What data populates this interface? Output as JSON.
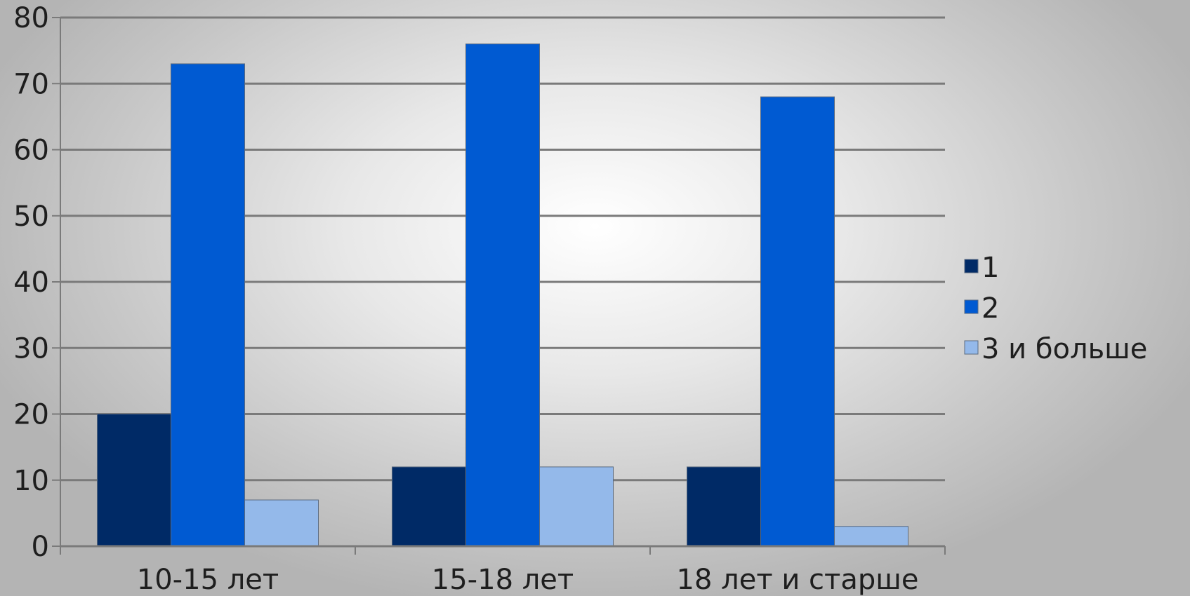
{
  "chart_data": {
    "type": "bar",
    "categories": [
      "10-15 лет",
      "15-18 лет",
      "18 лет и старше"
    ],
    "series": [
      {
        "name": "1",
        "values": [
          20,
          12,
          12
        ],
        "color": "#002a66"
      },
      {
        "name": "2",
        "values": [
          73,
          76,
          68
        ],
        "color": "#005ad2"
      },
      {
        "name": "3 и больше",
        "values": [
          7,
          12,
          3
        ],
        "color": "#94b9ea"
      }
    ],
    "yticks": [
      "0",
      "10",
      "20",
      "30",
      "40",
      "50",
      "60",
      "70",
      "80"
    ],
    "ylim": [
      0,
      80
    ],
    "grid": true,
    "legend_position": "right",
    "title": "",
    "xlabel": "",
    "ylabel": ""
  }
}
